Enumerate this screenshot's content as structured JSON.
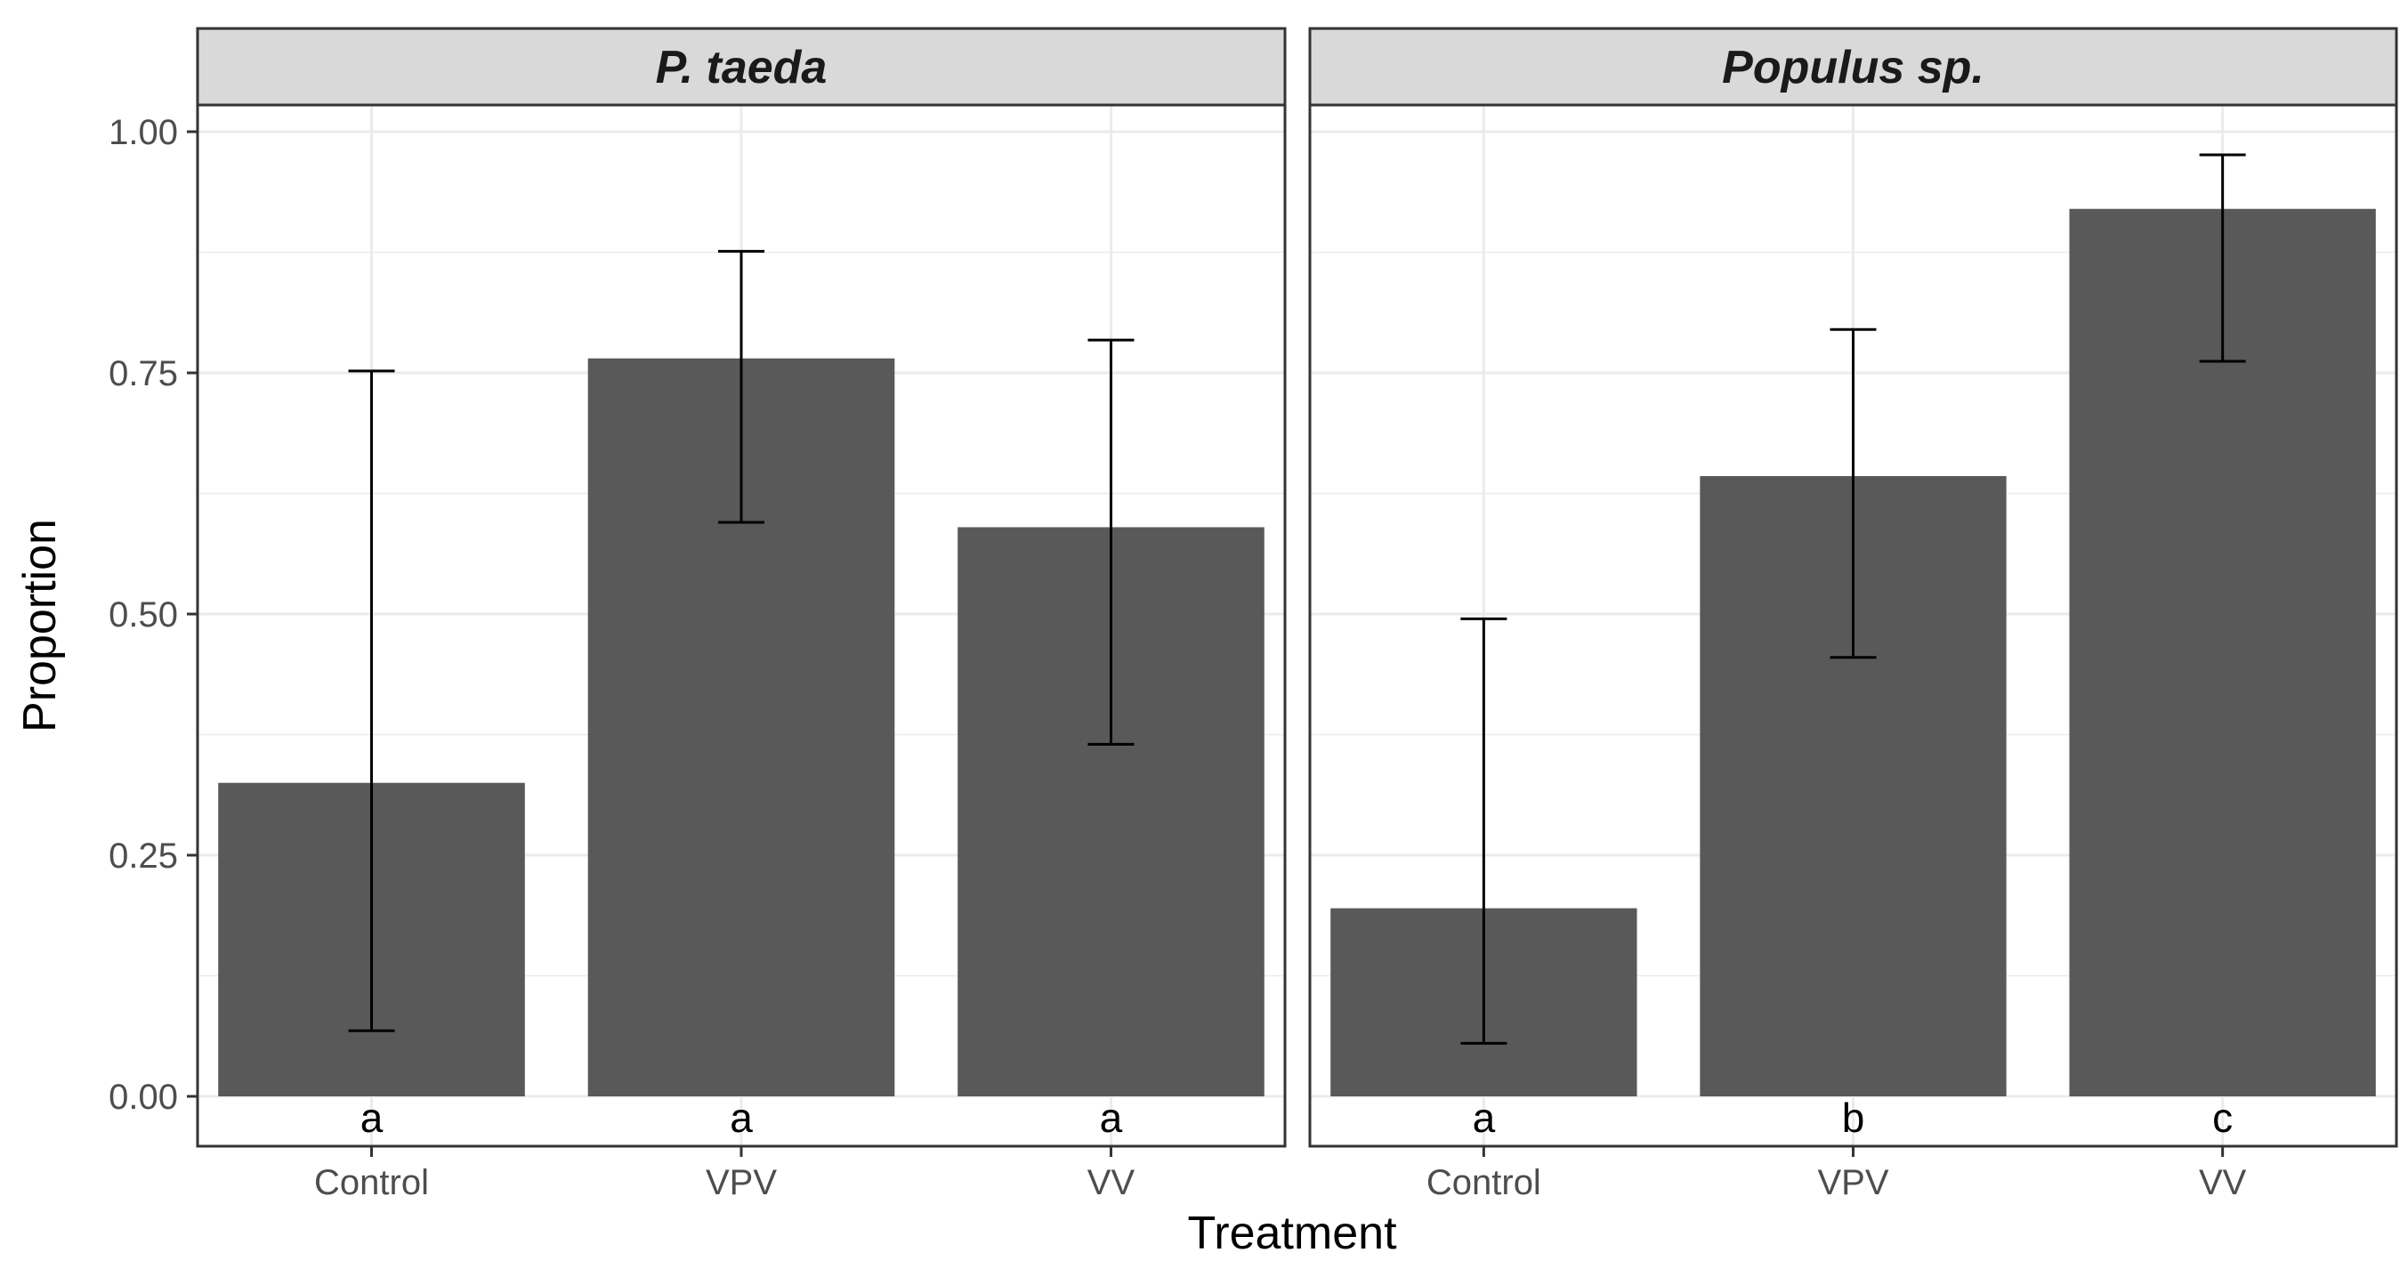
{
  "chart_data": {
    "type": "bar",
    "xlabel": "Treatment",
    "ylabel": "Proportion",
    "ylim": [
      0,
      1.06
    ],
    "yticks": [
      "0.00",
      "0.25",
      "0.50",
      "0.75",
      "1.00"
    ],
    "ytick_values": [
      0,
      0.25,
      0.5,
      0.75,
      1.0
    ],
    "grid": true,
    "categories": [
      "Control",
      "VPV",
      "VV"
    ],
    "colors": {
      "bar": "#595959",
      "strip_fill": "#d9d9d9",
      "panel_border": "#333333",
      "grid": "#ebebeb",
      "errorbar": "#000000"
    },
    "facets": [
      {
        "strip_label": "P. taeda",
        "values": [
          0.325,
          0.765,
          0.59
        ],
        "lower": [
          0.068,
          0.595,
          0.365
        ],
        "upper": [
          0.752,
          0.876,
          0.784
        ],
        "letters": [
          "a",
          "a",
          "a"
        ]
      },
      {
        "strip_label": "Populus sp.",
        "values": [
          0.195,
          0.643,
          0.92
        ],
        "lower": [
          0.055,
          0.455,
          0.762
        ],
        "upper": [
          0.495,
          0.795,
          0.976
        ],
        "letters": [
          "a",
          "b",
          "c"
        ]
      }
    ]
  }
}
